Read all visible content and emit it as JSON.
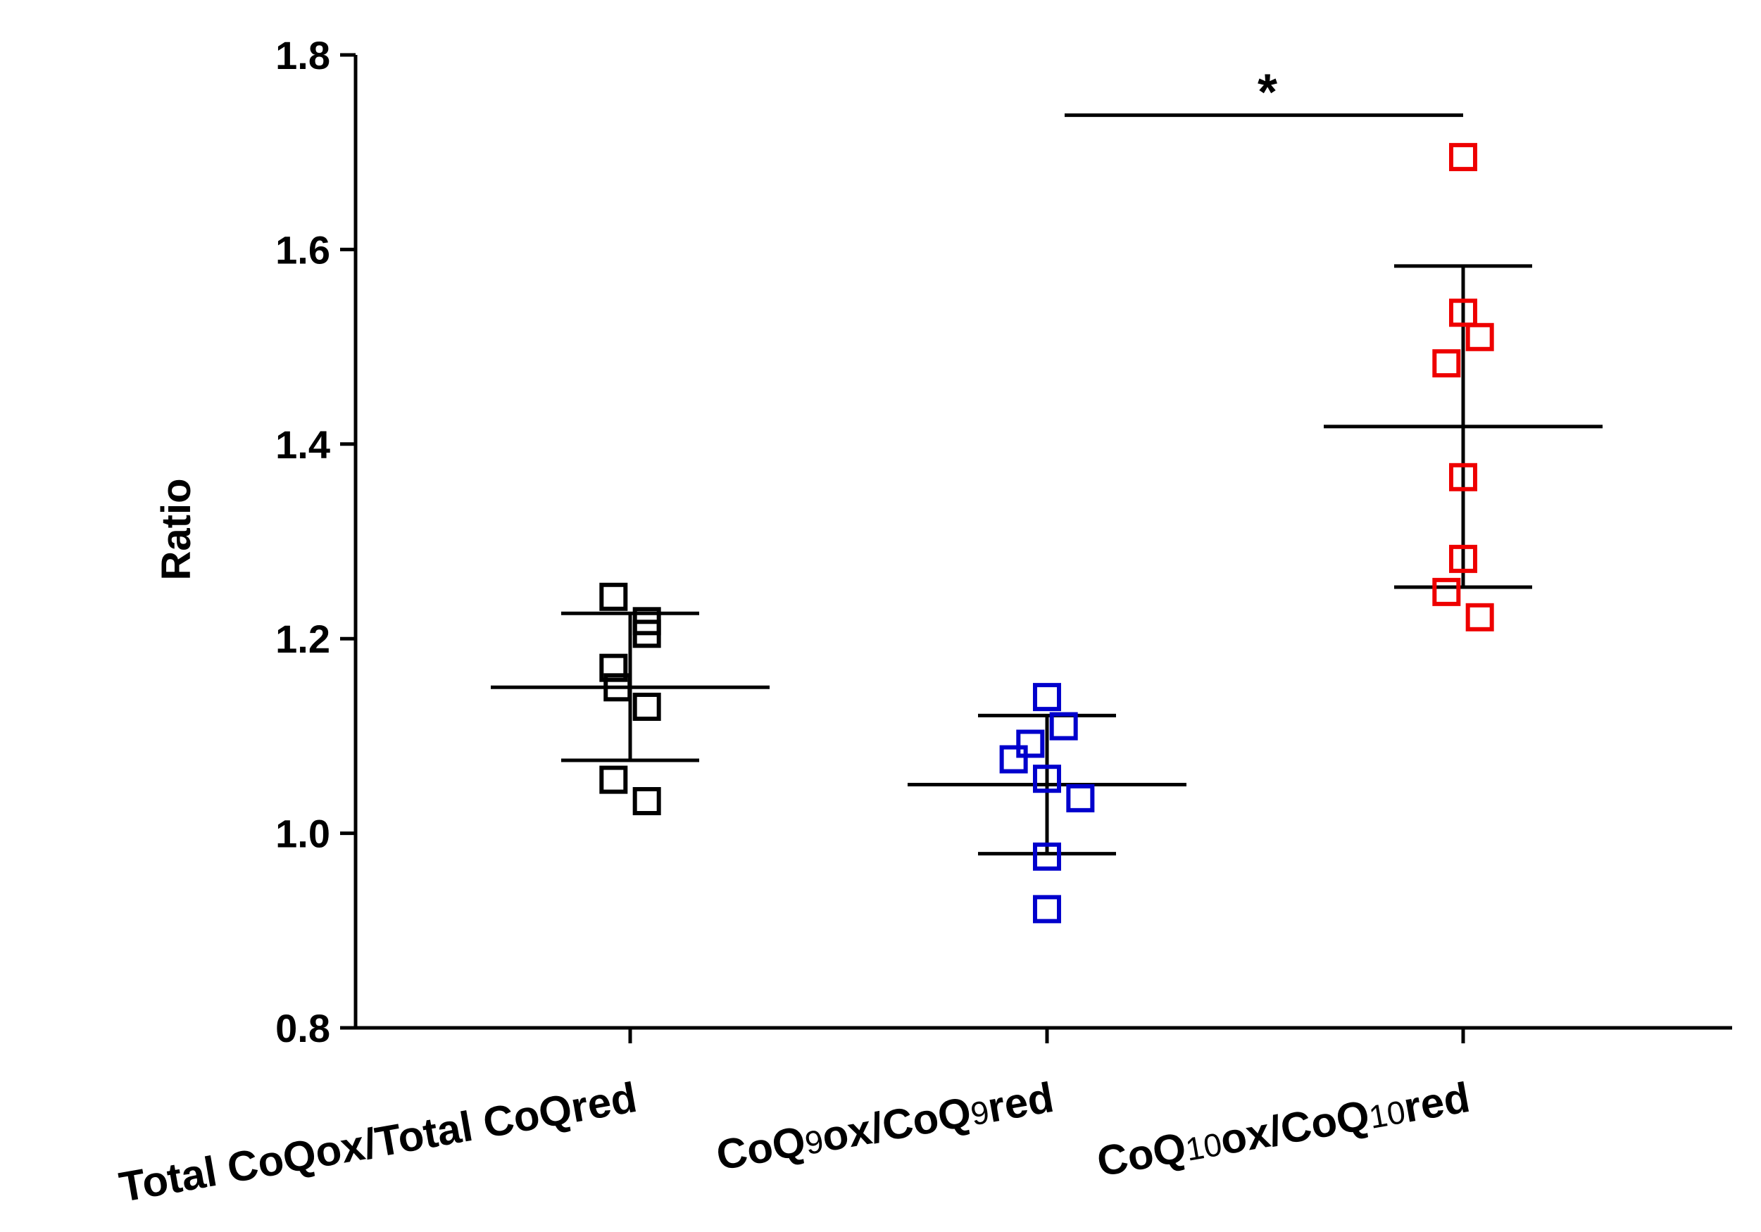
{
  "chart_data": {
    "type": "scatter",
    "ylabel": "Ratio",
    "xlabel": "",
    "ylim": [
      0.8,
      1.8
    ],
    "yticks": [
      "0.8",
      "1.0",
      "1.2",
      "1.4",
      "1.6",
      "1.8"
    ],
    "grid": false,
    "categories": [
      {
        "segments": [
          {
            "text": "Total CoQox/Total CoQred",
            "sub": false
          }
        ]
      },
      {
        "segments": [
          {
            "text": "CoQ",
            "sub": false
          },
          {
            "text": "9",
            "sub": true
          },
          {
            "text": "ox/CoQ",
            "sub": false
          },
          {
            "text": "9",
            "sub": true
          },
          {
            "text": "red",
            "sub": false
          }
        ]
      },
      {
        "segments": [
          {
            "text": "CoQ",
            "sub": false
          },
          {
            "text": "10",
            "sub": true
          },
          {
            "text": "ox/CoQ",
            "sub": false
          },
          {
            "text": "10",
            "sub": true
          },
          {
            "text": "red",
            "sub": false
          }
        ]
      }
    ],
    "series": [
      {
        "name": "Total CoQox/Total CoQred",
        "color": "#000000",
        "points": [
          {
            "x": -0.04,
            "y": 1.243
          },
          {
            "x": 0.04,
            "y": 1.218
          },
          {
            "x": 0.04,
            "y": 1.205
          },
          {
            "x": -0.04,
            "y": 1.17
          },
          {
            "x": -0.03,
            "y": 1.15
          },
          {
            "x": 0.04,
            "y": 1.13
          },
          {
            "x": -0.04,
            "y": 1.055
          },
          {
            "x": 0.04,
            "y": 1.033
          }
        ],
        "mean": 1.15,
        "sd_upper": 1.226,
        "sd_lower": 1.075
      },
      {
        "name": "CoQ9ox/CoQ9red",
        "color": "#0000cc",
        "points": [
          {
            "x": 0.0,
            "y": 1.14
          },
          {
            "x": 0.04,
            "y": 1.11
          },
          {
            "x": -0.04,
            "y": 1.092
          },
          {
            "x": -0.08,
            "y": 1.076
          },
          {
            "x": 0.0,
            "y": 1.056
          },
          {
            "x": 0.08,
            "y": 1.036
          },
          {
            "x": 0.0,
            "y": 0.976
          },
          {
            "x": 0.0,
            "y": 0.922
          }
        ],
        "mean": 1.05,
        "sd_upper": 1.121,
        "sd_lower": 0.979
      },
      {
        "name": "CoQ10ox/CoQ10red",
        "color": "#ee0000",
        "points": [
          {
            "x": 0.0,
            "y": 1.695
          },
          {
            "x": 0.0,
            "y": 1.535
          },
          {
            "x": 0.04,
            "y": 1.51
          },
          {
            "x": -0.04,
            "y": 1.483
          },
          {
            "x": 0.0,
            "y": 1.366
          },
          {
            "x": 0.0,
            "y": 1.282
          },
          {
            "x": -0.04,
            "y": 1.248
          },
          {
            "x": 0.04,
            "y": 1.222
          }
        ],
        "mean": 1.418,
        "sd_upper": 1.583,
        "sd_lower": 1.253
      }
    ],
    "annotations": [
      {
        "text": "*",
        "from_category": 1,
        "to_category": 2,
        "y": 1.738
      }
    ]
  }
}
